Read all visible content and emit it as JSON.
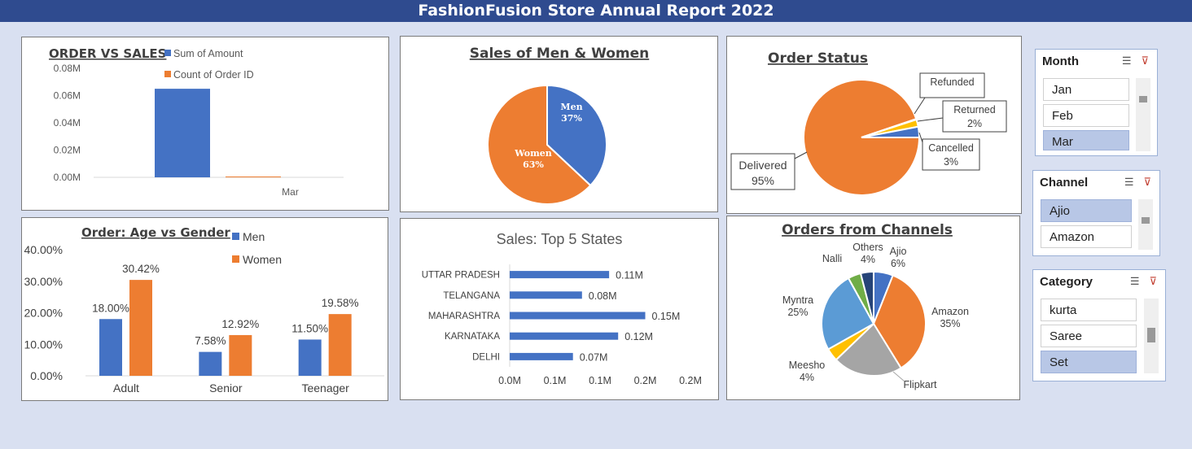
{
  "header": {
    "title": "FashionFusion Store Annual Report 2022"
  },
  "chart_data": [
    {
      "id": "order_vs_sales",
      "type": "bar",
      "title": "ORDER VS SALES",
      "categories": [
        "Mar"
      ],
      "series": [
        {
          "name": "Sum of Amount",
          "values": [
            0.065
          ]
        },
        {
          "name": "Count of Order ID",
          "values": [
            0.0005
          ]
        }
      ],
      "yticks": [
        "0.00M",
        "0.02M",
        "0.04M",
        "0.06M",
        "0.08M"
      ],
      "ylim": [
        0,
        0.08
      ],
      "legend": "top",
      "colors": [
        "#4472c4",
        "#ed7d31"
      ]
    },
    {
      "id": "sales_men_women",
      "type": "pie",
      "title": "Sales of Men & Women",
      "labels": [
        "Men",
        "Women"
      ],
      "values": [
        37,
        63
      ],
      "pct_labels": [
        "37%",
        "63%"
      ],
      "colors": [
        "#4472c4",
        "#ed7d31"
      ]
    },
    {
      "id": "order_status",
      "type": "pie",
      "title": "Order Status",
      "labels": [
        "Delivered",
        "Refunded",
        "Returned",
        "Cancelled"
      ],
      "values": [
        95,
        0.2,
        2,
        3
      ],
      "pct_labels": [
        "95%",
        "",
        "2%",
        "3%"
      ],
      "colors": [
        "#ed7d31",
        "#a5a5a5",
        "#ffc000",
        "#4472c4"
      ]
    },
    {
      "id": "age_vs_gender",
      "type": "bar",
      "title": "Order: Age vs Gender",
      "categories": [
        "Adult",
        "Senior",
        "Teenager"
      ],
      "series": [
        {
          "name": "Men",
          "values": [
            18.0,
            7.58,
            11.5
          ],
          "labels": [
            "18.00%",
            "7.58%",
            "11.50%"
          ]
        },
        {
          "name": "Women",
          "values": [
            30.42,
            12.92,
            19.58
          ],
          "labels": [
            "30.42%",
            "12.92%",
            "19.58%"
          ]
        }
      ],
      "yticks": [
        "0.00%",
        "10.00%",
        "20.00%",
        "30.00%",
        "40.00%"
      ],
      "ylim": [
        0,
        40
      ],
      "legend": "top-right",
      "colors": [
        "#4472c4",
        "#ed7d31"
      ]
    },
    {
      "id": "top5_states",
      "type": "bar",
      "orientation": "horizontal",
      "title": "Sales: Top 5 States",
      "categories": [
        "UTTAR PRADESH",
        "TELANGANA",
        "MAHARASHTRA",
        "KARNATAKA",
        "DELHI"
      ],
      "values": [
        0.11,
        0.08,
        0.15,
        0.12,
        0.07
      ],
      "labels": [
        "0.11M",
        "0.08M",
        "0.15M",
        "0.12M",
        "0.07M"
      ],
      "xticks": [
        "0.0M",
        "0.1M",
        "0.1M",
        "0.2M",
        "0.2M"
      ],
      "xlim": [
        0,
        0.2
      ],
      "colors": [
        "#4472c4"
      ]
    },
    {
      "id": "orders_channels",
      "type": "pie",
      "title": "Orders from Channels",
      "labels": [
        "Ajio",
        "Amazon",
        "Flipkart",
        "Meesho",
        "Myntra",
        "Nalli",
        "Others"
      ],
      "values": [
        6,
        35,
        21.5,
        4,
        25,
        4,
        4
      ],
      "pct_labels": [
        "6%",
        "35%",
        "",
        "4%",
        "25%",
        "",
        "4%"
      ],
      "colors": [
        "#4472c4",
        "#ed7d31",
        "#a5a5a5",
        "#ffc000",
        "#5b9bd5",
        "#70ad47",
        "#264478"
      ]
    }
  ],
  "slicers": {
    "month": {
      "title": "Month",
      "items": [
        "Jan",
        "Feb",
        "Mar"
      ],
      "selected": "Mar"
    },
    "channel": {
      "title": "Channel",
      "items": [
        "Ajio",
        "Amazon"
      ],
      "selected": "Ajio"
    },
    "category": {
      "title": "Category",
      "items": [
        "kurta",
        "Saree",
        "Set"
      ],
      "selected": "Set"
    }
  },
  "icons": {
    "multi_select": "multi-select-icon",
    "clear_filter": "clear-filter-icon"
  }
}
